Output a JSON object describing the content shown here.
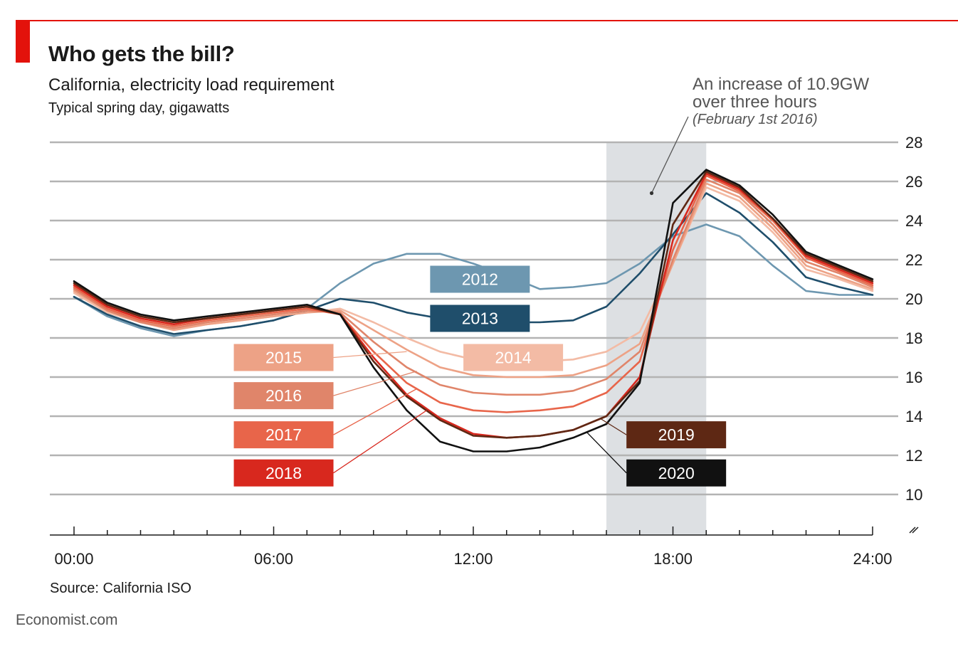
{
  "brand": {
    "site": "Economist.com"
  },
  "colors": {
    "accent_red": "#e3120b",
    "grid": "#b3b3b3",
    "shade": "#dde0e3"
  },
  "chart_data": {
    "type": "line",
    "title": "Who gets the bill?",
    "subtitle": "California, electricity load requirement",
    "unit_label": "Typical spring day, gigawatts",
    "source": "Source: California ISO",
    "xlim": [
      0,
      24
    ],
    "ylim": [
      10,
      28
    ],
    "x_ticks": [
      0,
      6,
      12,
      18,
      24
    ],
    "x_tick_labels": [
      "00:00",
      "06:00",
      "12:00",
      "18:00",
      "24:00"
    ],
    "y_ticks": [
      10,
      12,
      14,
      16,
      18,
      20,
      22,
      24,
      26,
      28
    ],
    "y_axis_position": "right",
    "y_axis_break": true,
    "grid": true,
    "highlight_band": [
      16,
      19
    ],
    "annotation": {
      "line1": "An increase of 10.9GW",
      "line2": "over three hours",
      "note": "(February 1st 2016)",
      "points_to": [
        18.3,
        25.4
      ]
    },
    "x": [
      0,
      1,
      2,
      3,
      4,
      5,
      6,
      7,
      8,
      9,
      10,
      11,
      12,
      13,
      14,
      15,
      16,
      17,
      18,
      19,
      20,
      21,
      22,
      23,
      24
    ],
    "series": [
      {
        "name": "2012",
        "color": "#6d97b0",
        "values": [
          20.1,
          19.1,
          18.5,
          18.1,
          18.4,
          18.6,
          18.9,
          19.5,
          20.8,
          21.8,
          22.3,
          22.3,
          21.8,
          21.2,
          20.5,
          20.6,
          20.8,
          21.8,
          23.2,
          23.8,
          23.2,
          21.7,
          20.4,
          20.2,
          20.2
        ]
      },
      {
        "name": "2013",
        "color": "#1f4e6b",
        "values": [
          20.1,
          19.2,
          18.6,
          18.2,
          18.4,
          18.6,
          18.9,
          19.4,
          20.0,
          19.8,
          19.3,
          19.0,
          18.8,
          18.8,
          18.8,
          18.9,
          19.6,
          21.3,
          23.3,
          25.4,
          24.4,
          22.9,
          21.1,
          20.6,
          20.2
        ]
      },
      {
        "name": "2014",
        "color": "#f3bba5",
        "values": [
          20.3,
          19.3,
          18.8,
          18.5,
          18.7,
          18.9,
          19.1,
          19.3,
          19.5,
          18.8,
          18.0,
          17.3,
          16.9,
          16.8,
          16.8,
          16.9,
          17.3,
          18.3,
          21.8,
          25.7,
          25.0,
          23.4,
          21.5,
          21.0,
          20.4
        ]
      },
      {
        "name": "2015",
        "color": "#eda286",
        "values": [
          20.4,
          19.4,
          18.8,
          18.4,
          18.7,
          18.9,
          19.1,
          19.3,
          19.4,
          18.4,
          17.4,
          16.5,
          16.1,
          16.0,
          16.0,
          16.1,
          16.6,
          17.7,
          21.8,
          25.9,
          25.2,
          23.6,
          21.7,
          21.1,
          20.5
        ]
      },
      {
        "name": "2016",
        "color": "#e0856a",
        "values": [
          20.5,
          19.4,
          18.8,
          18.5,
          18.8,
          19.0,
          19.2,
          19.4,
          19.3,
          17.8,
          16.5,
          15.6,
          15.2,
          15.1,
          15.1,
          15.3,
          15.9,
          17.3,
          22.0,
          26.1,
          25.4,
          23.8,
          21.9,
          21.3,
          20.6
        ]
      },
      {
        "name": "2017",
        "color": "#e8654a",
        "values": [
          20.6,
          19.5,
          18.9,
          18.6,
          18.9,
          19.1,
          19.3,
          19.5,
          19.2,
          17.3,
          15.7,
          14.7,
          14.3,
          14.2,
          14.3,
          14.5,
          15.2,
          16.8,
          22.5,
          26.3,
          25.5,
          24.0,
          22.1,
          21.4,
          20.7
        ]
      },
      {
        "name": "2018",
        "color": "#d8281e",
        "values": [
          20.7,
          19.6,
          19.0,
          18.7,
          19.0,
          19.2,
          19.4,
          19.6,
          19.2,
          17.0,
          15.1,
          13.9,
          13.1,
          12.9,
          13.0,
          13.3,
          14.0,
          16.0,
          23.0,
          26.4,
          25.6,
          24.1,
          22.2,
          21.5,
          20.8
        ]
      },
      {
        "name": "2019",
        "color": "#5e2814",
        "values": [
          20.8,
          19.7,
          19.1,
          18.8,
          19.0,
          19.2,
          19.4,
          19.6,
          19.2,
          16.8,
          15.0,
          13.8,
          13.0,
          12.9,
          13.0,
          13.3,
          14.0,
          15.8,
          23.8,
          26.5,
          25.7,
          24.1,
          22.3,
          21.6,
          20.9
        ]
      },
      {
        "name": "2020",
        "color": "#111111",
        "values": [
          20.9,
          19.8,
          19.2,
          18.9,
          19.1,
          19.3,
          19.5,
          19.7,
          19.2,
          16.5,
          14.3,
          12.7,
          12.2,
          12.2,
          12.4,
          12.9,
          13.6,
          15.7,
          24.9,
          26.6,
          25.8,
          24.3,
          22.4,
          21.7,
          21.0
        ]
      }
    ],
    "series_labels": [
      {
        "name": "2012",
        "text_color": "#ffffff",
        "box_at": [
          12.2,
          21.0
        ],
        "leader_to": null
      },
      {
        "name": "2013",
        "text_color": "#ffffff",
        "box_at": [
          12.2,
          19.0
        ],
        "leader_to": null
      },
      {
        "name": "2014",
        "text_color": "#ffffff",
        "box_at": [
          13.2,
          17.0
        ],
        "leader_to": null
      },
      {
        "name": "2015",
        "text_color": "#ffffff",
        "box_at": [
          6.3,
          17.0
        ],
        "leader_to": [
          10.0,
          17.3
        ]
      },
      {
        "name": "2016",
        "text_color": "#ffffff",
        "box_at": [
          6.3,
          15.05
        ],
        "leader_to": [
          10.3,
          16.3
        ]
      },
      {
        "name": "2017",
        "text_color": "#ffffff",
        "box_at": [
          6.3,
          13.05
        ],
        "leader_to": [
          10.3,
          15.4
        ]
      },
      {
        "name": "2018",
        "text_color": "#ffffff",
        "box_at": [
          6.3,
          11.1
        ],
        "leader_to": [
          10.6,
          14.3
        ]
      },
      {
        "name": "2019",
        "text_color": "#ffffff",
        "box_at": [
          18.1,
          13.05
        ],
        "leader_to": [
          15.8,
          13.9
        ]
      },
      {
        "name": "2020",
        "text_color": "#ffffff",
        "box_at": [
          18.1,
          11.1
        ],
        "leader_to": [
          15.4,
          13.2
        ]
      }
    ]
  }
}
